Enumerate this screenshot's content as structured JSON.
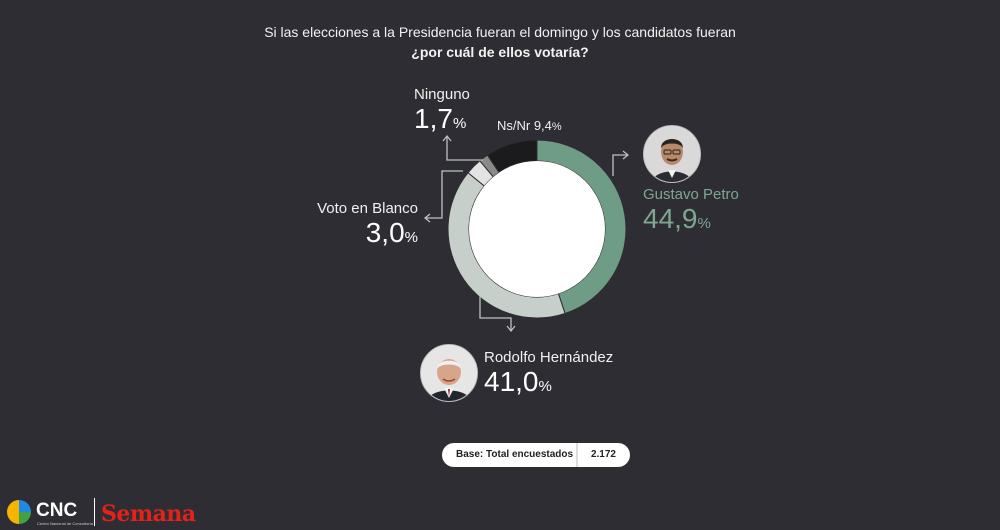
{
  "title": {
    "line1": "Si las elecciones a la Presidencia fueran el domingo y los candidatos fueran",
    "line2": "¿por cuál de ellos votaría?"
  },
  "chart_data": {
    "type": "pie",
    "donut": true,
    "series": [
      {
        "name": "Gustavo Petro",
        "value": 44.9,
        "display": "44,9",
        "color": "#6e9c84"
      },
      {
        "name": "Rodolfo Hernández",
        "value": 41.0,
        "display": "41,0",
        "color": "#c6cfc9"
      },
      {
        "name": "Voto en Blanco",
        "value": 3.0,
        "display": "3,0",
        "color": "#e3e3e3"
      },
      {
        "name": "Ninguno",
        "value": 1.7,
        "display": "1,7",
        "color": "#8a8a8a"
      },
      {
        "name": "Ns/Nr",
        "value": 9.4,
        "display": "9,4",
        "color": "#1b1b1d"
      }
    ],
    "unit": "%"
  },
  "labels": {
    "ninguno": {
      "name": "Ninguno",
      "value": "1,7",
      "unit": "%"
    },
    "nsnr": {
      "text": "Ns/Nr 9,4",
      "unit": "%"
    },
    "blanco": {
      "name": "Voto en Blanco",
      "value": "3,0",
      "unit": "%"
    },
    "petro": {
      "name": "Gustavo Petro",
      "value": "44,9",
      "unit": "%"
    },
    "hernandez": {
      "name": "Rodolfo Hernández",
      "value": "41,0",
      "unit": "%"
    }
  },
  "base": {
    "label": "Base: Total encuestados",
    "value": "2.172"
  },
  "logos": {
    "cnc": "CNC",
    "cnc_sub": "Centro Nacional de Consultoría",
    "semana": "Semana"
  }
}
